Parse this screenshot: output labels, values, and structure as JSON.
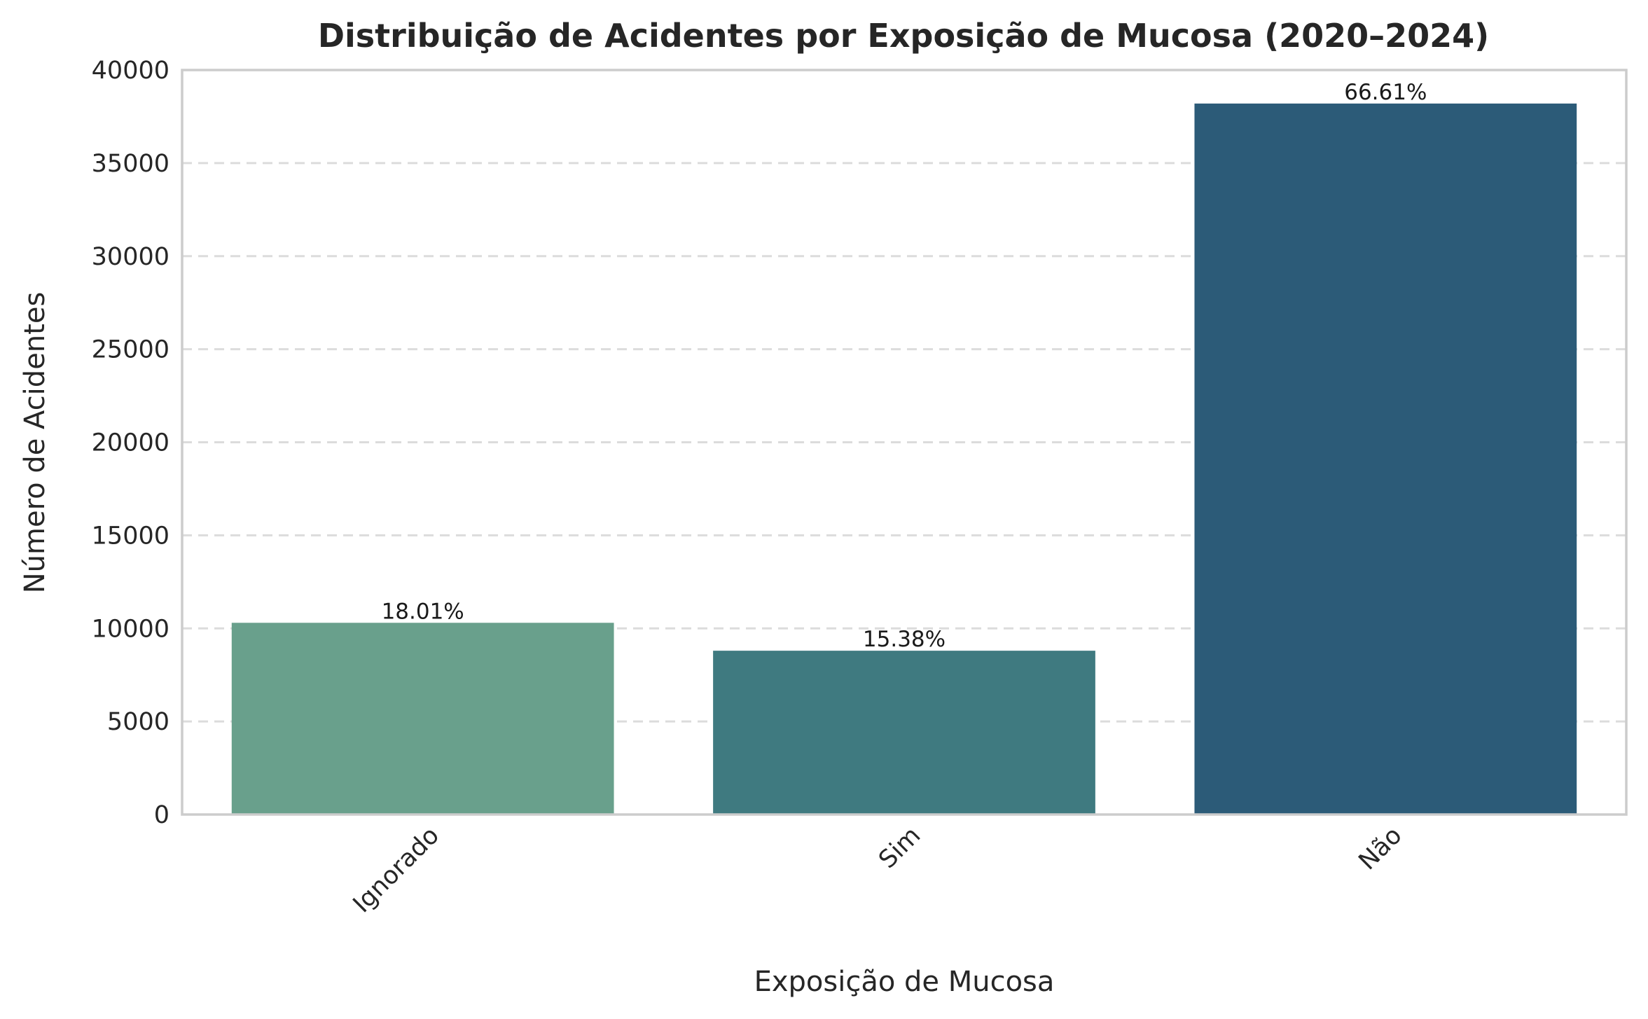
{
  "chart_data": {
    "type": "bar",
    "title": "Distribuição de Acidentes por Exposição de Mucosa (2020–2024)",
    "xlabel": "Exposição de Mucosa",
    "ylabel": "Número de Acidentes",
    "categories": [
      "Ignorado",
      "Sim",
      "Não"
    ],
    "values": [
      10300,
      8800,
      38200
    ],
    "data_labels": [
      "18.01%",
      "15.38%",
      "66.61%"
    ],
    "colors": [
      "#69a08c",
      "#3f7a80",
      "#2c5b78"
    ],
    "ylim": [
      0,
      40000
    ],
    "yticks": [
      "0",
      "5000",
      "10000",
      "15000",
      "20000",
      "25000",
      "30000",
      "35000",
      "40000"
    ],
    "grid": "y-dashed",
    "legend": "none"
  }
}
